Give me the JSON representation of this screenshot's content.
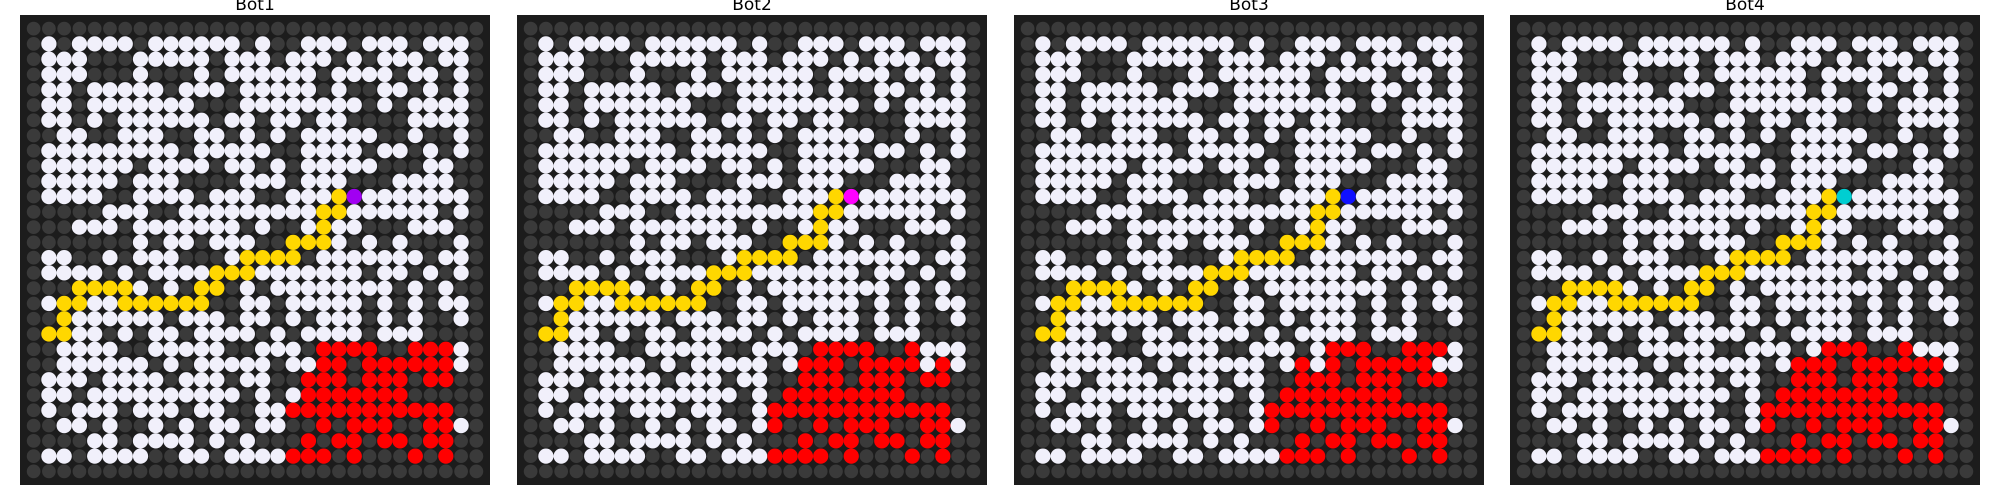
{
  "colors": {
    "background": "#1c1c1c",
    "grid_dot": "#3a3a3a",
    "open": "#f1f0fb",
    "path": "#ffd700",
    "fire": "#ff0000"
  },
  "panels": [
    {
      "title": "Bot1",
      "bot_color": "#a100f2",
      "bot_cell": [
        21,
        11
      ],
      "fire_seed": 1
    },
    {
      "title": "Bot2",
      "bot_color": "#ff00ff",
      "bot_cell": [
        21,
        11
      ],
      "fire_seed": 2
    },
    {
      "title": "Bot3",
      "bot_color": "#1010ff",
      "bot_cell": [
        21,
        11
      ],
      "fire_seed": 3
    },
    {
      "title": "Bot4",
      "bot_color": "#00ced1",
      "bot_cell": [
        21,
        11
      ],
      "fire_seed": 4
    }
  ],
  "grid": {
    "cols": 30,
    "rows": 30
  },
  "path_cells": [
    [
      1,
      20
    ],
    [
      2,
      20
    ],
    [
      2,
      19
    ],
    [
      2,
      18
    ],
    [
      3,
      18
    ],
    [
      3,
      17
    ],
    [
      4,
      17
    ],
    [
      5,
      17
    ],
    [
      6,
      17
    ],
    [
      6,
      18
    ],
    [
      7,
      18
    ],
    [
      8,
      18
    ],
    [
      9,
      18
    ],
    [
      10,
      18
    ],
    [
      11,
      18
    ],
    [
      11,
      17
    ],
    [
      12,
      17
    ],
    [
      12,
      16
    ],
    [
      13,
      16
    ],
    [
      14,
      16
    ],
    [
      14,
      15
    ],
    [
      15,
      15
    ],
    [
      16,
      15
    ],
    [
      17,
      15
    ],
    [
      17,
      14
    ],
    [
      18,
      14
    ],
    [
      19,
      14
    ],
    [
      19,
      13
    ],
    [
      19,
      12
    ],
    [
      20,
      12
    ],
    [
      20,
      11
    ]
  ]
}
